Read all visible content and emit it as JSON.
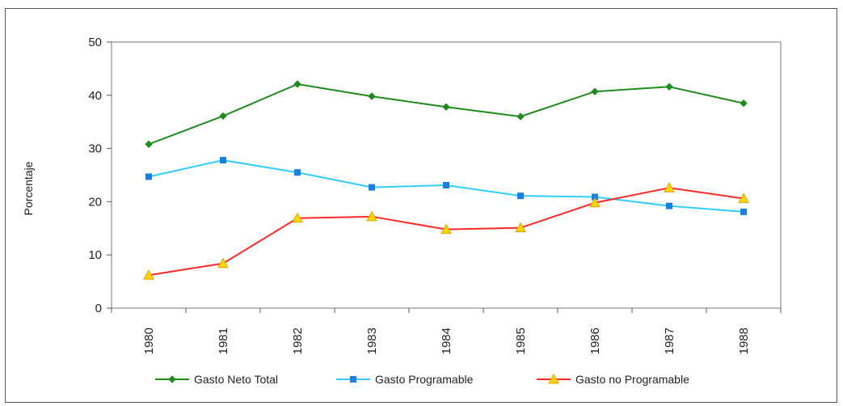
{
  "chart_data": {
    "type": "line",
    "title": "",
    "xlabel": "",
    "ylabel": "Porcentaje",
    "ylim": [
      0,
      50
    ],
    "yticks": [
      0,
      10,
      20,
      30,
      40,
      50
    ],
    "grid": false,
    "legend_position": "bottom",
    "categories": [
      "1980",
      "1981",
      "1982",
      "1983",
      "1984",
      "1985",
      "1986",
      "1987",
      "1988"
    ],
    "series": [
      {
        "name": "Gasto Neto Total",
        "color": "#1f8a1f",
        "marker": "diamond",
        "values": [
          30.8,
          36.1,
          42.1,
          39.8,
          37.8,
          36.0,
          40.7,
          41.6,
          38.5
        ]
      },
      {
        "name": "Gasto Programable",
        "color": "#33ccff",
        "marker": "square",
        "values": [
          24.7,
          27.8,
          25.5,
          22.7,
          23.1,
          21.1,
          20.9,
          19.2,
          18.1
        ]
      },
      {
        "name": "Gasto no Programable",
        "color": "#ff2a2a",
        "marker": "triangle",
        "marker_fill": "#ffd700",
        "values": [
          6.2,
          8.4,
          16.9,
          17.2,
          14.8,
          15.1,
          19.8,
          22.6,
          20.6
        ]
      }
    ]
  }
}
